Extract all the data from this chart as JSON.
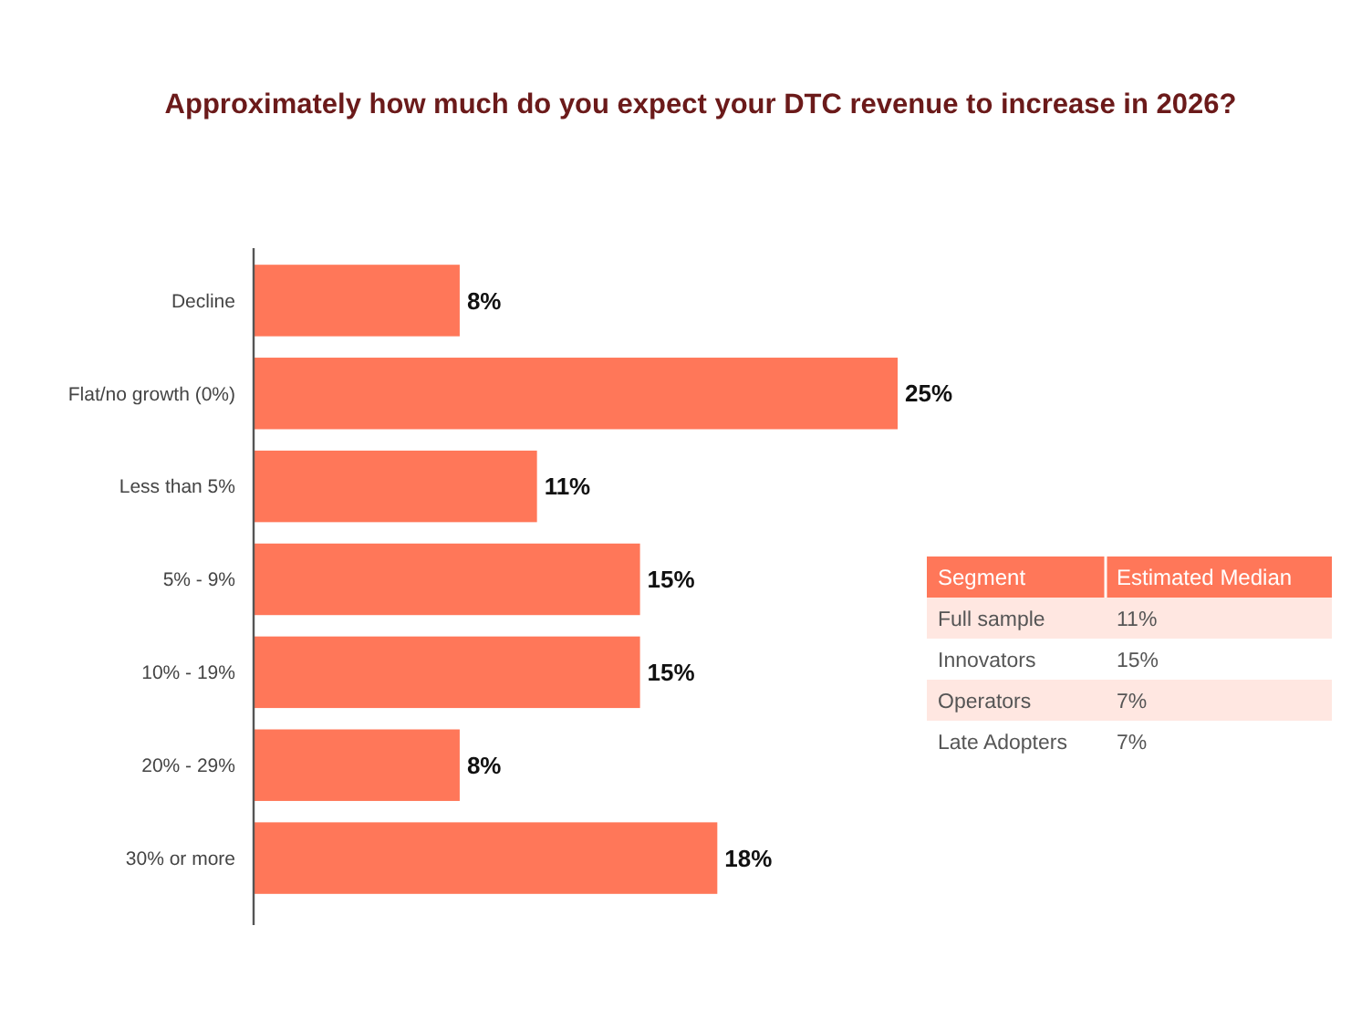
{
  "chart_data": [
    {
      "type": "bar",
      "orientation": "horizontal",
      "title": "Approximately how much do you expect your DTC revenue to increase in 2026?",
      "categories": [
        "Decline",
        "Flat/no growth (0%)",
        "Less than 5%",
        "5% - 9%",
        "10% - 19%",
        "20% - 29%",
        "30% or more"
      ],
      "values": [
        8,
        25,
        11,
        15,
        15,
        8,
        18
      ],
      "value_labels": [
        "8%",
        "25%",
        "11%",
        "15%",
        "15%",
        "8%",
        "18%"
      ],
      "color": "#ff7759"
    },
    {
      "type": "other",
      "annotations": [
        "Segment",
        "Estimated Median"
      ],
      "categories": [
        "Full sample",
        "Innovators",
        "Operators",
        "Late Adopters"
      ],
      "value_labels": [
        "11%",
        "15%",
        "7%",
        "7%"
      ]
    }
  ]
}
